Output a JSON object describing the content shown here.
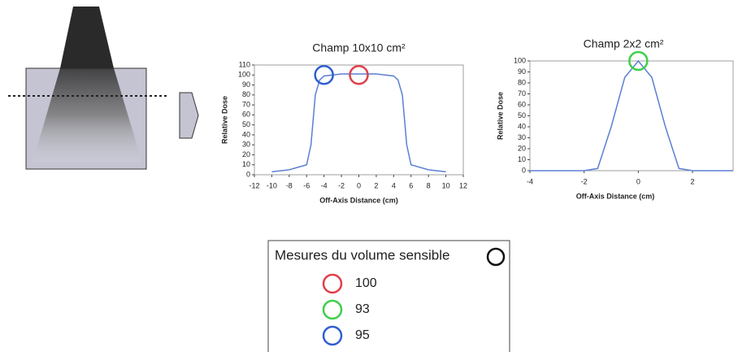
{
  "chart_data": [
    {
      "type": "line",
      "title": "Champ 10x10 cm²",
      "xlabel": "Off-Axis Distance (cm)",
      "ylabel": "Relative Dose",
      "x": [
        -10,
        -8,
        -6,
        -5.5,
        -5,
        -4.5,
        -4,
        -2,
        0,
        2,
        4,
        4.5,
        5,
        5.5,
        6,
        8,
        10
      ],
      "series": [
        {
          "color": "#5b7fd6",
          "values": [
            3,
            5,
            10,
            30,
            80,
            95,
            99,
            101,
            101,
            101,
            99,
            95,
            80,
            30,
            10,
            5,
            3
          ]
        }
      ],
      "xlim": [
        -12,
        12
      ],
      "xticks": [
        -12,
        -10,
        -8,
        -6,
        -4,
        -2,
        0,
        2,
        4,
        6,
        8,
        10,
        12
      ],
      "ylim": [
        0,
        110
      ],
      "yticks": [
        0,
        10,
        20,
        30,
        40,
        50,
        60,
        70,
        80,
        90,
        100,
        110
      ],
      "markers": [
        {
          "x": -4,
          "y": 100,
          "color": "#2f5fd0"
        },
        {
          "x": 0,
          "y": 100,
          "color": "#e0404a"
        }
      ]
    },
    {
      "type": "line",
      "title": "Champ 2x2 cm²",
      "xlabel": "Off-Axis Distance (cm)",
      "ylabel": "Relative Dose",
      "x": [
        -4,
        -3,
        -2,
        -1.5,
        -1,
        -0.5,
        0,
        0.5,
        1,
        1.5,
        2,
        3,
        3.5
      ],
      "series": [
        {
          "color": "#5b7fd6",
          "values": [
            0,
            0,
            0,
            2,
            40,
            85,
            100,
            85,
            40,
            2,
            0,
            0,
            0
          ]
        }
      ],
      "xlim": [
        -4,
        3.5
      ],
      "xticks": [
        -4,
        -2,
        0,
        2
      ],
      "ylim": [
        0,
        100
      ],
      "yticks": [
        0,
        10,
        20,
        30,
        40,
        50,
        60,
        70,
        80,
        90,
        100
      ],
      "markers": [
        {
          "x": 0,
          "y": 100,
          "color": "#3fcf4a"
        }
      ]
    }
  ],
  "legend": {
    "title": "Mesures du volume sensible",
    "title_color": "#111111",
    "items": [
      {
        "color": "#e0404a",
        "label": 100
      },
      {
        "color": "#3fcf4a",
        "label": 93
      },
      {
        "color": "#2f5fd0",
        "label": 95
      }
    ]
  }
}
